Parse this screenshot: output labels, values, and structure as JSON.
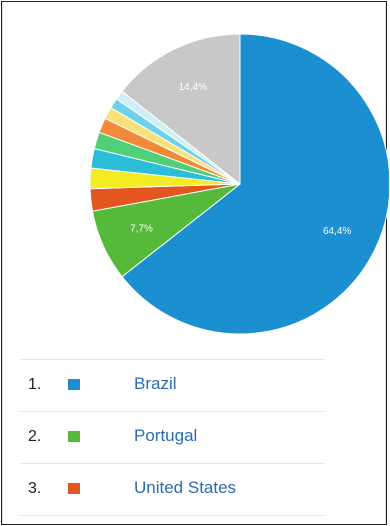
{
  "chart_data": {
    "type": "pie",
    "title": "",
    "slices": [
      {
        "name": "Brazil",
        "value": 64.4,
        "color": "#1b8fcf",
        "label": "64,4%"
      },
      {
        "name": "Portugal",
        "value": 7.7,
        "color": "#55b93a",
        "label": "7,7%"
      },
      {
        "name": "United States",
        "value": 2.4,
        "color": "#e4561f",
        "label": ""
      },
      {
        "name": "",
        "value": 2.2,
        "color": "#f3ec22",
        "label": ""
      },
      {
        "name": "",
        "value": 2.1,
        "color": "#2bbfd7",
        "label": ""
      },
      {
        "name": "",
        "value": 1.8,
        "color": "#4fcf76",
        "label": ""
      },
      {
        "name": "",
        "value": 1.6,
        "color": "#f08a3a",
        "label": ""
      },
      {
        "name": "",
        "value": 1.3,
        "color": "#f6e276",
        "label": ""
      },
      {
        "name": "",
        "value": 1.1,
        "color": "#6fd0ea",
        "label": ""
      },
      {
        "name": "",
        "value": 1.0,
        "color": "#cfeef8",
        "label": ""
      },
      {
        "name": "",
        "value": 14.4,
        "color": "#c8c8c8",
        "label": "14,4%"
      }
    ]
  },
  "legend": {
    "rows": [
      {
        "rank": "1.",
        "country": "Brazil",
        "color": "#1b8fcf"
      },
      {
        "rank": "2.",
        "country": "Portugal",
        "color": "#55b93a"
      },
      {
        "rank": "3.",
        "country": "United States",
        "color": "#e4561f"
      }
    ]
  }
}
